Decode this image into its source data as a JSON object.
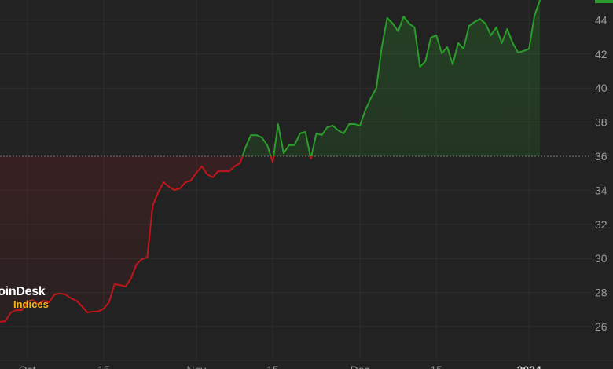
{
  "chart_data": {
    "type": "area",
    "title": "",
    "xlabel": "",
    "ylabel": "",
    "x_start": "2023-09-26",
    "x_step": "1 day",
    "baseline": 36,
    "ylim": [
      25,
      45
    ],
    "grid": true,
    "y_ticks": [
      "26",
      "28",
      "30",
      "32",
      "34",
      "36",
      "38",
      "40",
      "42",
      "44"
    ],
    "x_ticks": [
      {
        "label": "Oct",
        "date": "2023-10-01",
        "bold": false
      },
      {
        "label": "15",
        "date": "2023-10-15",
        "bold": false
      },
      {
        "label": "Nov",
        "date": "2023-11-01",
        "bold": false
      },
      {
        "label": "15",
        "date": "2023-11-15",
        "bold": false
      },
      {
        "label": "Dec",
        "date": "2023-12-01",
        "bold": false
      },
      {
        "label": "15",
        "date": "2023-12-15",
        "bold": false
      },
      {
        "label": "2024",
        "date": "2024-01-01",
        "bold": true
      }
    ],
    "values": [
      26.28,
      26.32,
      26.83,
      26.97,
      26.97,
      27.43,
      27.57,
      27.29,
      27.52,
      27.43,
      27.89,
      27.94,
      27.89,
      27.66,
      27.52,
      27.2,
      26.83,
      26.88,
      26.88,
      27.06,
      27.43,
      28.49,
      28.44,
      28.35,
      28.81,
      29.64,
      29.96,
      30.06,
      33.1,
      33.88,
      34.48,
      34.2,
      34.02,
      34.11,
      34.48,
      34.57,
      35.03,
      35.4,
      34.94,
      34.76,
      35.12,
      35.12,
      35.12,
      35.4,
      35.59,
      36.51,
      37.24,
      37.24,
      37.1,
      36.65,
      35.63,
      37.89,
      36.18,
      36.65,
      36.65,
      37.34,
      37.43,
      35.86,
      37.34,
      37.24,
      37.7,
      37.8,
      37.52,
      37.34,
      37.89,
      37.89,
      37.8,
      38.72,
      39.41,
      40.01,
      42.41,
      44.11,
      43.79,
      43.33,
      44.2,
      43.79,
      43.56,
      41.25,
      41.58,
      42.96,
      43.1,
      42.04,
      42.41,
      41.39,
      42.64,
      42.31,
      43.65,
      43.88,
      44.06,
      43.79,
      43.1,
      43.56,
      42.64,
      43.47,
      42.64,
      42.08,
      42.18,
      42.31,
      44.25,
      45.17
    ],
    "colors": {
      "up": "#2a9d2a",
      "down": "#c0161b",
      "background": "#222222",
      "grid": "#2e2e2e",
      "price_tag": "#2a9d2a"
    }
  },
  "logo": {
    "line1": "CoinDesk",
    "line2": "Indices"
  }
}
